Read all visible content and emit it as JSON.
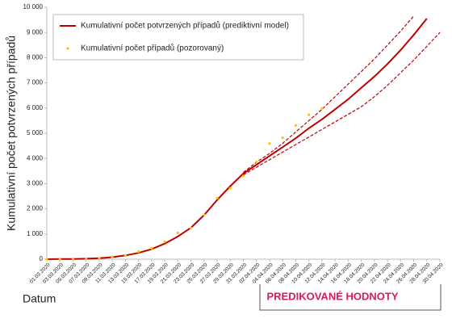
{
  "chart_data": {
    "type": "line",
    "y_label": "Kumulativní počet potvrzených případů",
    "x_label": "Datum",
    "annotation": "PREDIKOVANÉ HODNOTY",
    "categories": [
      "01.03.2020",
      "03.03.2020",
      "05.03.2020",
      "07.03.2020",
      "09.03.2020",
      "11.03.2020",
      "13.03.2020",
      "15.03.2020",
      "17.03.2020",
      "19.03.2020",
      "21.03.2020",
      "23.03.2020",
      "25.03.2020",
      "27.03.2020",
      "29.03.2020",
      "31.03.2020",
      "02.04.2020",
      "04.04.2020",
      "06.04.2020",
      "08.04.2020",
      "10.04.2020",
      "12.04.2020",
      "14.04.2020",
      "16.04.2020",
      "18.04.2020",
      "20.04.2020",
      "22.04.2020",
      "24.04.2020",
      "26.04.2020",
      "28.04.2020",
      "30.04.2020"
    ],
    "series": [
      {
        "name": "Kumulativní počet potvrzených případů (prediktivní model)",
        "color": "#c00000",
        "style": "solid",
        "values": [
          0,
          5,
          10,
          20,
          40,
          80,
          150,
          250,
          400,
          620,
          900,
          1250,
          1750,
          2350,
          2900,
          3400,
          3750,
          4100,
          4450,
          4800,
          5200,
          5550,
          5950,
          6350,
          6800,
          7250,
          7750,
          8300,
          8900,
          9550,
          null
        ]
      },
      {
        "color": "#c00000",
        "style": "dashed",
        "values": [
          null,
          null,
          null,
          null,
          null,
          null,
          null,
          null,
          null,
          null,
          null,
          null,
          null,
          null,
          null,
          3450,
          3850,
          4200,
          4600,
          5050,
          5500,
          5950,
          6450,
          6950,
          7450,
          7950,
          8500,
          9050,
          9650,
          null,
          null
        ]
      },
      {
        "color": "#c00000",
        "style": "dashed",
        "values": [
          null,
          null,
          null,
          null,
          null,
          null,
          null,
          null,
          null,
          null,
          null,
          null,
          null,
          null,
          null,
          3350,
          3650,
          3950,
          4250,
          4550,
          4850,
          5150,
          5450,
          5750,
          6050,
          6450,
          6900,
          7400,
          7900,
          8450,
          9000
        ]
      },
      {
        "name": "Kumulativní počet případů (pozorovaný)",
        "color": "#ffc000",
        "style": "points",
        "values": [
          0,
          5,
          12,
          19,
          40,
          94,
          141,
          298,
          434,
          694,
          1047,
          1236,
          1765,
          2422,
          2817,
          3308,
          3858,
          4591,
          4822,
          5312,
          5732,
          5991,
          null,
          null,
          null,
          null,
          null,
          null,
          null,
          null,
          null
        ]
      }
    ],
    "ylim": [
      0,
      10000
    ],
    "yticks": [
      0,
      {
        "value": 1000,
        "label": "1 000"
      },
      {
        "value": 2000,
        "label": "2 000"
      },
      {
        "value": 3000,
        "label": "3 000"
      },
      {
        "value": 4000,
        "label": "4 000"
      },
      {
        "value": 5000,
        "label": "5 000"
      },
      {
        "value": 6000,
        "label": "6 000"
      },
      {
        "value": 7000,
        "label": "7 000"
      },
      {
        "value": 8000,
        "label": "8 000"
      },
      {
        "value": 9000,
        "label": "9 000"
      },
      {
        "value": 10000,
        "label": "10 000"
      }
    ],
    "legend": "top-left"
  }
}
